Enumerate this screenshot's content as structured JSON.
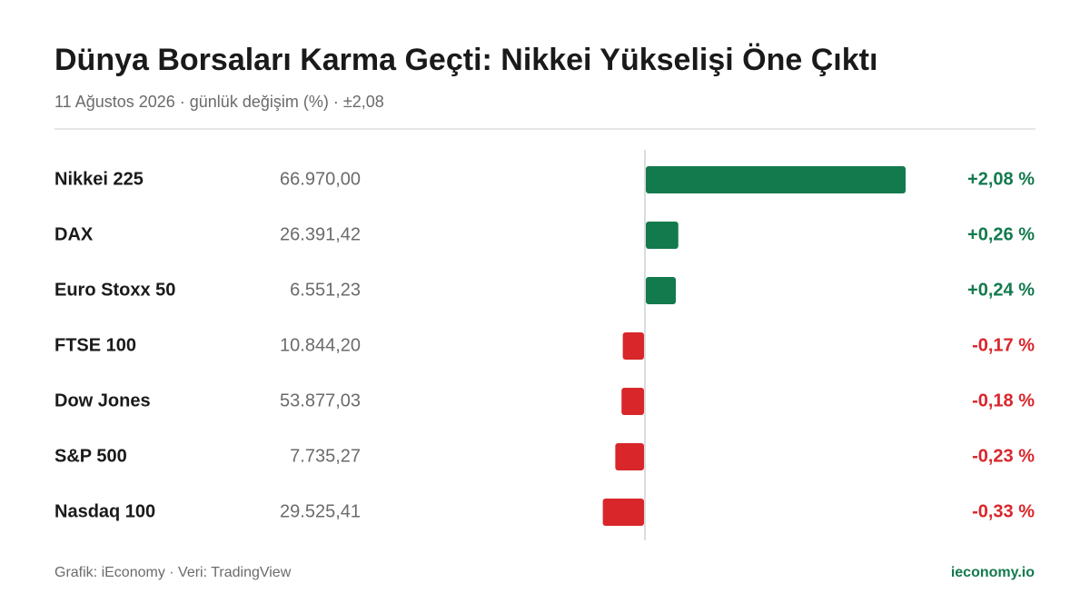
{
  "chart_data": {
    "type": "bar",
    "title": "Dünya Borsaları Karma Geçti: Nikkei Yükselişi Öne Çıktı",
    "subtitle": "11 Ağustos 2026 · günlük değişim (%) · ±2,08",
    "categories": [
      "Nikkei 225",
      "DAX",
      "Euro Stoxx 50",
      "FTSE 100",
      "Dow Jones",
      "S&P 500",
      "Nasdaq 100"
    ],
    "prices": [
      "66.970,00",
      "26.391,42",
      "6.551,23",
      "10.844,20",
      "53.877,03",
      "7.735,27",
      "29.525,41"
    ],
    "values": [
      2.08,
      0.26,
      0.24,
      -0.17,
      -0.18,
      -0.23,
      -0.33
    ],
    "value_labels": [
      "+2,08 %",
      "+0,26 %",
      "+0,24 %",
      "-0,17 %",
      "-0,18 %",
      "-0,23 %",
      "-0,33 %"
    ],
    "positive_color": "#137a4e",
    "negative_color": "#d9262b",
    "source": "Grafik: iEconomy · Veri: TradingView",
    "brand": "ieconomy.io"
  }
}
